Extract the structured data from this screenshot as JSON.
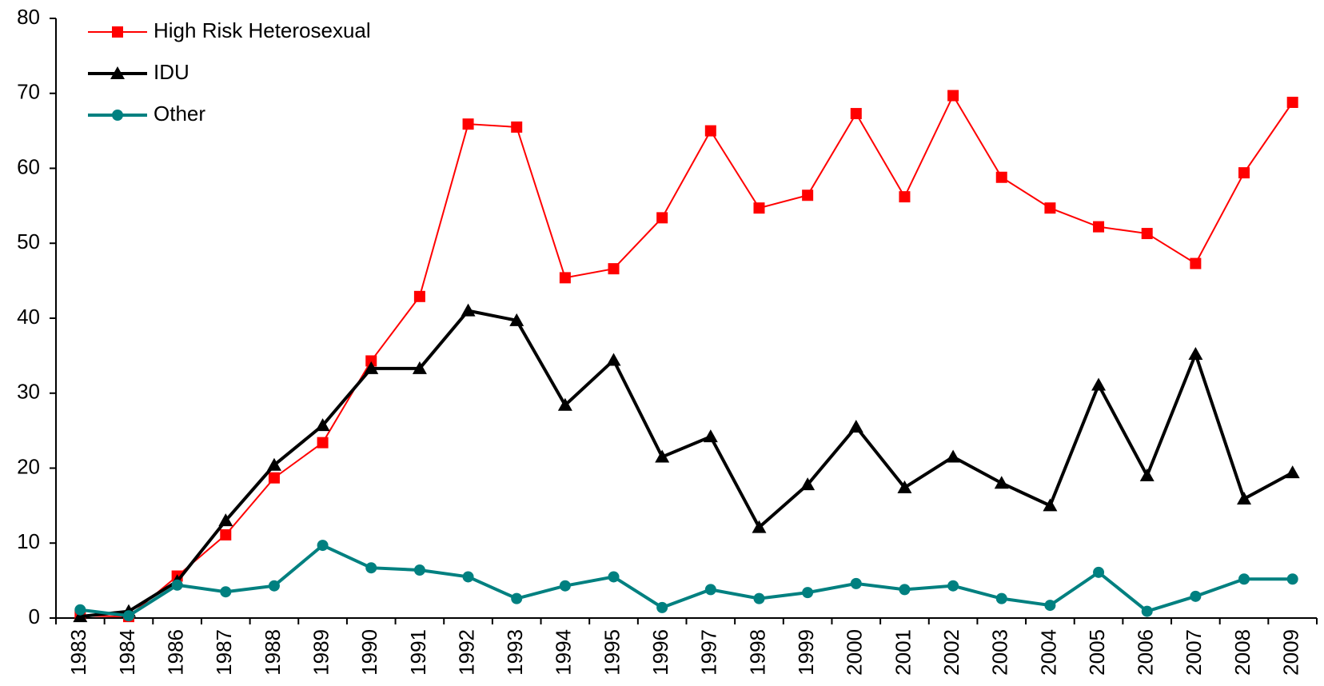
{
  "chart_data": {
    "type": "line",
    "categories": [
      "1983",
      "1984",
      "1986",
      "1987",
      "1988",
      "1989",
      "1990",
      "1991",
      "1992",
      "1993",
      "1994",
      "1995",
      "1996",
      "1997",
      "1998",
      "1999",
      "2000",
      "2001",
      "2002",
      "2003",
      "2004",
      "2005",
      "2006",
      "2007",
      "2008",
      "2009"
    ],
    "series": [
      {
        "name": "High Risk Heterosexual",
        "color": "#ff0000",
        "marker": "square",
        "values": [
          0.3,
          0.2,
          5.6,
          11.1,
          18.7,
          23.4,
          34.3,
          42.9,
          65.9,
          65.5,
          45.4,
          46.6,
          53.4,
          65.0,
          54.7,
          56.4,
          67.3,
          56.2,
          69.7,
          58.8,
          54.7,
          52.2,
          51.3,
          47.3,
          59.4,
          68.8
        ]
      },
      {
        "name": "IDU",
        "color": "#000000",
        "marker": "triangle",
        "values": [
          0.2,
          0.9,
          4.9,
          13.0,
          20.4,
          25.7,
          33.3,
          33.3,
          41.0,
          39.7,
          28.4,
          34.4,
          21.5,
          24.2,
          12.1,
          17.8,
          25.5,
          17.4,
          21.5,
          18.0,
          15.0,
          31.1,
          19.0,
          35.2,
          15.9,
          19.4
        ]
      },
      {
        "name": "Other",
        "color": "#008080",
        "marker": "circle",
        "values": [
          1.1,
          0.3,
          4.4,
          3.5,
          4.3,
          9.7,
          6.7,
          6.4,
          5.5,
          2.6,
          4.3,
          5.5,
          1.4,
          3.8,
          2.6,
          3.4,
          4.6,
          3.8,
          4.3,
          2.6,
          1.7,
          6.1,
          0.9,
          2.9,
          5.2,
          5.2
        ]
      }
    ],
    "ylim": [
      0,
      80
    ],
    "yticks": [
      0,
      10,
      20,
      30,
      40,
      50,
      60,
      70,
      80
    ],
    "grid": false,
    "legend": "upper left"
  }
}
